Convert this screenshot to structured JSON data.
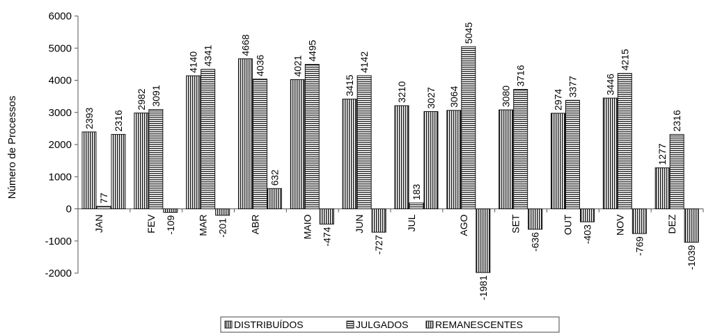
{
  "chart_data": {
    "type": "bar",
    "title": "",
    "xlabel": "",
    "ylabel": "Número de Processos",
    "ylim": [
      -2000,
      6000
    ],
    "yticks": [
      -2000,
      -1000,
      0,
      1000,
      2000,
      3000,
      4000,
      5000,
      6000
    ],
    "grid": false,
    "legend_position": "bottom",
    "categories": [
      "JAN",
      "FEV",
      "MAR",
      "ABR",
      "MAIO",
      "JUN",
      "JUL",
      "AGO",
      "SET",
      "OUT",
      "NOV",
      "DEZ"
    ],
    "series": [
      {
        "name": "DISTRIBUÍDOS",
        "pattern": "vertical-lines",
        "values": [
          2393,
          2982,
          4140,
          4668,
          4021,
          3415,
          3210,
          3064,
          3080,
          2974,
          3446,
          1277
        ]
      },
      {
        "name": "JULGADOS",
        "pattern": "horizontal-lines",
        "values": [
          77,
          3091,
          4341,
          4036,
          4495,
          4142,
          183,
          5045,
          3716,
          3377,
          4215,
          2316
        ]
      },
      {
        "name": "REMANESCENTES",
        "pattern": "vertical-lines",
        "values": [
          2316,
          -109,
          -201,
          632,
          -474,
          -727,
          3027,
          -1981,
          -636,
          -403,
          -769,
          -1039
        ]
      }
    ]
  }
}
